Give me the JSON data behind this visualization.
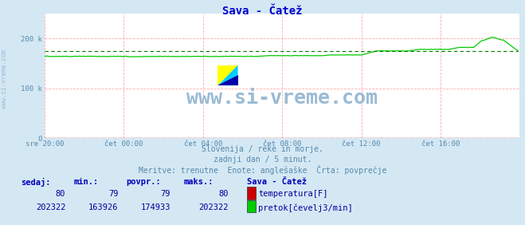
{
  "title": "Sava - Čatež",
  "title_color": "#0000cc",
  "bg_color": "#d4e8f4",
  "plot_bg_color": "#ffffff",
  "grid_color": "#ffaaaa",
  "xlabel_color": "#5588aa",
  "text_color": "#5588aa",
  "watermark": "www.si-vreme.com",
  "watermark_color": "#9bbbd4",
  "subtitle1": "Slovenija / reke in morje.",
  "subtitle2": "zadnji dan / 5 minut.",
  "subtitle3": "Meritve: trenutne  Enote: anglešaške  Črta: povprečje",
  "xlim": [
    0,
    288
  ],
  "ylim": [
    0,
    250000
  ],
  "yticks": [
    0,
    100000,
    200000
  ],
  "ytick_labels": [
    "0",
    "100 k",
    "200 k"
  ],
  "xtick_positions": [
    0,
    48,
    96,
    144,
    192,
    240,
    287
  ],
  "xtick_labels": [
    "sre 20:00",
    "čet 00:00",
    "čet 04:00",
    "čet 08:00",
    "čet 12:00",
    "čet 16:00",
    ""
  ],
  "temp_color": "#cc0000",
  "flow_color": "#00cc00",
  "avg_flow_color": "#007700",
  "avg_temp_color": "#880000",
  "flow_avg": 174933,
  "temp_avg": 79,
  "table_header_color": "#0000bb",
  "table_data_color": "#000099",
  "temp_row": [
    "80",
    "79",
    "79",
    "80"
  ],
  "flow_row": [
    "202322",
    "163926",
    "174933",
    "202322"
  ],
  "legend_title": "Sava - Čatež",
  "legend_temp": "temperatura[F]",
  "legend_flow": "pretok[čevelj3/min]",
  "watermark_side": "www.si-vreme.com"
}
